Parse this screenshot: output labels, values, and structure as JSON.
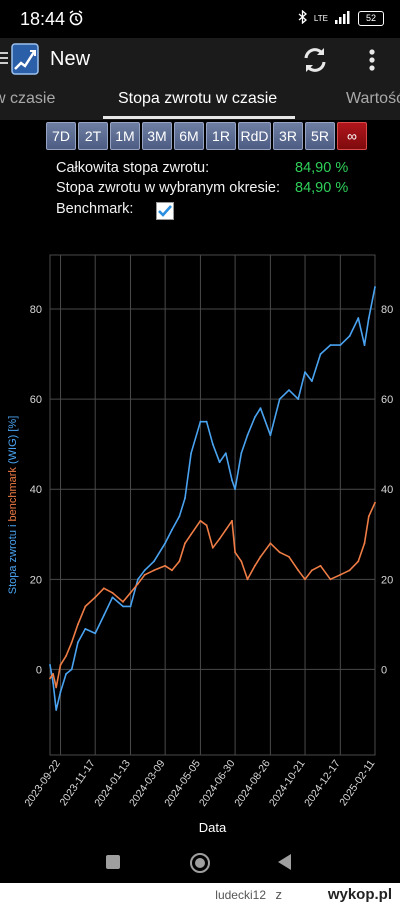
{
  "status": {
    "time": "18:44",
    "network": "LTE",
    "battery": "52"
  },
  "app": {
    "title": "New"
  },
  "tabs": [
    "w czasie",
    "Stopa zwrotu w czasie",
    "Wartość"
  ],
  "periods": [
    "7D",
    "2T",
    "1M",
    "3M",
    "6M",
    "1R",
    "RdD",
    "3R",
    "5R",
    "∞"
  ],
  "active_period": "∞",
  "stats": {
    "total_label": "Całkowita stopa zwrotu:",
    "total_value": "84,90 %",
    "period_label": "Stopa zwrotu w wybranym okresie:",
    "period_value": "84,90 %",
    "benchmark_label": "Benchmark:",
    "benchmark_checked": true
  },
  "colors": {
    "return_line": "#4aa3f0",
    "benchmark_line": "#ef7d45",
    "positive": "#2fd05a",
    "active_period": "#a0121a"
  },
  "chart_data": {
    "type": "line",
    "xlabel": "Data",
    "ylabel_parts": [
      "Stopa zwrotu i ",
      "benchmark",
      " (WIG) [%]"
    ],
    "ylim": [
      -19,
      92
    ],
    "yticks": [
      0,
      20,
      40,
      60,
      80
    ],
    "xlim": [
      "2023-09-05",
      "2025-02-11"
    ],
    "xticks": [
      "2023-09-22",
      "2023-11-17",
      "2024-01-13",
      "2024-03-09",
      "2024-05-05",
      "2024-06-30",
      "2024-08-26",
      "2024-10-21",
      "2024-12-17",
      "2025-02-11"
    ],
    "grid": true,
    "series": [
      {
        "name": "Stopa zwrotu",
        "x": [
          "2023-09-05",
          "2023-09-10",
          "2023-09-15",
          "2023-09-22",
          "2023-10-01",
          "2023-10-10",
          "2023-10-20",
          "2023-11-01",
          "2023-11-17",
          "2023-12-01",
          "2023-12-15",
          "2024-01-01",
          "2024-01-13",
          "2024-01-25",
          "2024-02-05",
          "2024-02-20",
          "2024-03-09",
          "2024-03-20",
          "2024-04-01",
          "2024-04-10",
          "2024-04-20",
          "2024-05-05",
          "2024-05-15",
          "2024-05-25",
          "2024-06-05",
          "2024-06-15",
          "2024-06-25",
          "2024-06-30",
          "2024-07-10",
          "2024-07-20",
          "2024-08-01",
          "2024-08-10",
          "2024-08-26",
          "2024-09-10",
          "2024-09-25",
          "2024-10-10",
          "2024-10-21",
          "2024-11-01",
          "2024-11-15",
          "2024-12-01",
          "2024-12-17",
          "2025-01-01",
          "2025-01-15",
          "2025-01-25",
          "2025-02-01",
          "2025-02-11"
        ],
        "values": [
          1,
          -3,
          -9,
          -5,
          -1,
          0,
          6,
          9,
          8,
          12,
          16,
          14,
          14,
          20,
          22,
          24,
          28,
          31,
          34,
          38,
          48,
          55,
          55,
          50,
          46,
          48,
          42,
          40,
          48,
          52,
          56,
          58,
          52,
          60,
          62,
          60,
          66,
          64,
          70,
          72,
          72,
          74,
          78,
          72,
          78,
          84.9
        ]
      },
      {
        "name": "WIG",
        "x": [
          "2023-09-05",
          "2023-09-10",
          "2023-09-15",
          "2023-09-22",
          "2023-10-01",
          "2023-10-10",
          "2023-10-20",
          "2023-11-01",
          "2023-11-17",
          "2023-12-01",
          "2023-12-15",
          "2024-01-01",
          "2024-01-13",
          "2024-01-25",
          "2024-02-05",
          "2024-02-20",
          "2024-03-09",
          "2024-03-20",
          "2024-04-01",
          "2024-04-10",
          "2024-04-20",
          "2024-05-05",
          "2024-05-15",
          "2024-05-25",
          "2024-06-05",
          "2024-06-15",
          "2024-06-25",
          "2024-06-30",
          "2024-07-10",
          "2024-07-20",
          "2024-08-01",
          "2024-08-10",
          "2024-08-26",
          "2024-09-10",
          "2024-09-25",
          "2024-10-10",
          "2024-10-21",
          "2024-11-01",
          "2024-11-15",
          "2024-12-01",
          "2024-12-17",
          "2025-01-01",
          "2025-01-15",
          "2025-01-25",
          "2025-02-01",
          "2025-02-11"
        ],
        "values": [
          -2,
          -1,
          -4,
          1,
          3,
          6,
          10,
          14,
          16,
          18,
          17,
          15,
          17,
          19,
          21,
          22,
          23,
          22,
          24,
          28,
          30,
          33,
          32,
          27,
          29,
          31,
          33,
          26,
          24,
          20,
          23,
          25,
          28,
          26,
          25,
          22,
          20,
          22,
          23,
          20,
          21,
          22,
          24,
          28,
          34,
          37
        ]
      }
    ]
  }
}
